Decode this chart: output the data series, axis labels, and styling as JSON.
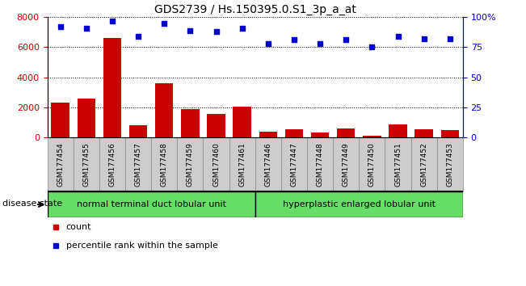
{
  "title": "GDS2739 / Hs.150395.0.S1_3p_a_at",
  "categories": [
    "GSM177454",
    "GSM177455",
    "GSM177456",
    "GSM177457",
    "GSM177458",
    "GSM177459",
    "GSM177460",
    "GSM177461",
    "GSM177446",
    "GSM177447",
    "GSM177448",
    "GSM177449",
    "GSM177450",
    "GSM177451",
    "GSM177452",
    "GSM177453"
  ],
  "bar_values": [
    2300,
    2600,
    6600,
    800,
    3600,
    1900,
    1550,
    2050,
    380,
    510,
    310,
    580,
    120,
    850,
    530,
    470
  ],
  "percentile_values": [
    92,
    91,
    97,
    84,
    95,
    89,
    88,
    91,
    78,
    81,
    78,
    81,
    75,
    84,
    82,
    82
  ],
  "bar_color": "#cc0000",
  "dot_color": "#0000cc",
  "ylim_left": [
    0,
    8000
  ],
  "ylim_right": [
    0,
    100
  ],
  "yticks_left": [
    0,
    2000,
    4000,
    6000,
    8000
  ],
  "yticks_right": [
    0,
    25,
    50,
    75,
    100
  ],
  "group1_label": "normal terminal duct lobular unit",
  "group2_label": "hyperplastic enlarged lobular unit",
  "group1_color": "#66dd66",
  "group2_color": "#66dd66",
  "disease_state_label": "disease state",
  "legend_count_label": "count",
  "legend_percentile_label": "percentile rank within the sample",
  "group1_size": 8,
  "group2_size": 8,
  "tick_box_color": "#cccccc",
  "tick_box_edge": "#888888"
}
